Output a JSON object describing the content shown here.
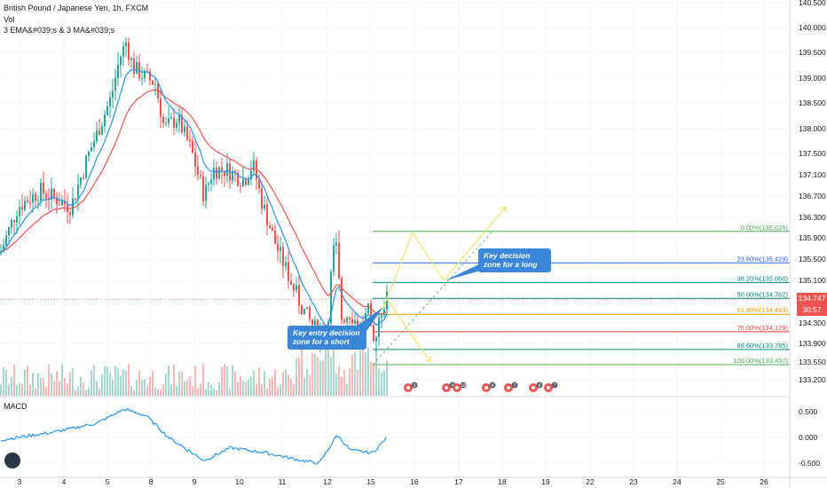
{
  "header": {
    "symbol_line": "British Pound / Japanese Yen, 1h, FXCM",
    "vol_label": "Vol",
    "indicator_label": "3 EMA&#039;s & 3 MA&#039;s"
  },
  "macd_label": "MACD",
  "price_tag": {
    "price": "134.747",
    "countdown": "30:57"
  },
  "callouts": {
    "short": "Key entry decision zone for a short",
    "long": "Key decision zone for a long"
  },
  "colors": {
    "up": "#26a69a",
    "down": "#ef5350",
    "ema_blue": "#2196f3",
    "ema_red": "#ef5350",
    "fib_green": "#4caf50",
    "fib_blue": "#2962ff",
    "fib_teal": "#00897b",
    "fib_orange": "#ff9800",
    "fib_red": "#f44336",
    "projection": "#f2e25c",
    "callout": "#3a86d8"
  },
  "chart_data": {
    "type": "candlestick",
    "y_axis_ticks": [
      "140.500",
      "140.000",
      "139.500",
      "139.000",
      "138.500",
      "138.000",
      "137.500",
      "137.100",
      "136.700",
      "136.300",
      "135.900",
      "135.500",
      "135.100",
      "134.700",
      "134.300",
      "133.900",
      "133.550",
      "133.200"
    ],
    "x_axis_ticks": [
      "3",
      "4",
      "5",
      "8",
      "9",
      "10",
      "11",
      "12",
      "15",
      "16",
      "17",
      "18",
      "19",
      "22",
      "23",
      "24",
      "25",
      "26"
    ],
    "macd_axis_ticks": [
      "0.500",
      "0.000",
      "-0.500"
    ],
    "fib_levels": [
      {
        "label": "0.00%(136.026)",
        "price": 136.026,
        "color": "#4caf50"
      },
      {
        "label": "23.60%(135.429)",
        "price": 135.429,
        "color": "#2962ff"
      },
      {
        "label": "38.20%(135.060)",
        "price": 135.06,
        "color": "#00897b"
      },
      {
        "label": "50.00%(134.762)",
        "price": 134.762,
        "color": "#00897b"
      },
      {
        "label": "61.80%(134.463)",
        "price": 134.463,
        "color": "#ff9800"
      },
      {
        "label": "75.00%(134.129)",
        "price": 134.129,
        "color": "#f44336"
      },
      {
        "label": "88.60%(133.785)",
        "price": 133.785,
        "color": "#00897b"
      },
      {
        "label": "100.00%(133.497)",
        "price": 133.497,
        "color": "#4caf50"
      }
    ],
    "event_badges": [
      "3",
      "4",
      "18",
      "4",
      "7",
      "8",
      "7"
    ],
    "current_price": 134.747,
    "price_range": [
      133.2,
      140.5
    ]
  }
}
